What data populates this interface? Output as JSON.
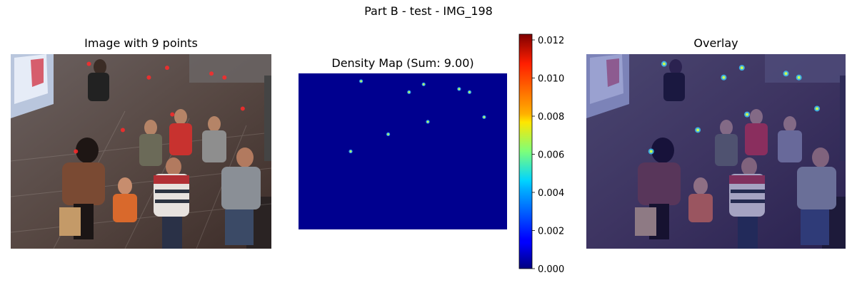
{
  "figure": {
    "suptitle": "Part B - test - IMG_198"
  },
  "panels": {
    "image": {
      "title": "Image with 9 points"
    },
    "density": {
      "title": "Density Map (Sum: 9.00)"
    },
    "overlay": {
      "title": "Overlay"
    }
  },
  "colorbar": {
    "ticks": [
      "0.012",
      "0.010",
      "0.008",
      "0.006",
      "0.004",
      "0.002",
      "0.000"
    ],
    "tick_values": [
      0.012,
      0.01,
      0.008,
      0.006,
      0.004,
      0.002,
      0.0
    ],
    "vmin": 0.0,
    "vmax": 0.0123,
    "colormap": "jet"
  },
  "chart_data": {
    "type": "heatmap",
    "title": "Density Map (Sum: 9.00)",
    "sum": 9.0,
    "point_count": 9,
    "value_range": [
      0.0,
      0.0123
    ],
    "colormap": "jet",
    "points": [
      {
        "x": 0.3,
        "y": 0.05
      },
      {
        "x": 0.53,
        "y": 0.12
      },
      {
        "x": 0.6,
        "y": 0.07
      },
      {
        "x": 0.77,
        "y": 0.1
      },
      {
        "x": 0.82,
        "y": 0.12
      },
      {
        "x": 0.89,
        "y": 0.28
      },
      {
        "x": 0.62,
        "y": 0.31
      },
      {
        "x": 0.43,
        "y": 0.39
      },
      {
        "x": 0.25,
        "y": 0.5
      }
    ]
  }
}
